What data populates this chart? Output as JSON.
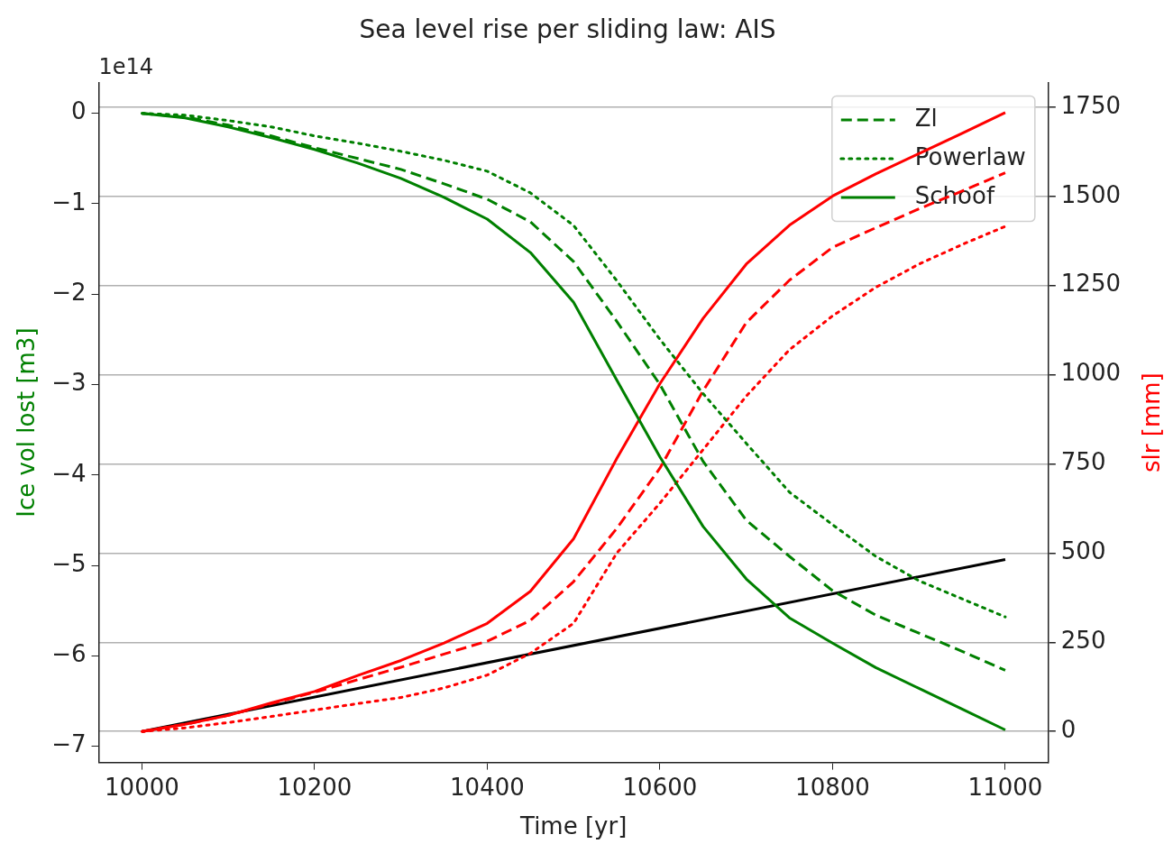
{
  "chart_data": {
    "type": "line",
    "title": "Sea level rise per sliding law: AIS",
    "xlabel": "Time [yr]",
    "ylabel": "Ice vol lost [m3]",
    "y2label": "slr [mm]",
    "annotations": [
      "1e14"
    ],
    "x": [
      10000,
      10050,
      10100,
      10150,
      10200,
      10250,
      10300,
      10350,
      10400,
      10450,
      10500,
      10550,
      10600,
      10650,
      10700,
      10750,
      10800,
      10850,
      10900,
      10950,
      11000
    ],
    "series": [
      {
        "name": "Zl",
        "color": "#008000",
        "line_style": "dashed",
        "values": [
          0,
          -0.04,
          -0.13,
          -0.25,
          -0.38,
          -0.5,
          -0.62,
          -0.78,
          -0.95,
          -1.2,
          -1.64,
          -2.3,
          -3.0,
          -3.85,
          -4.5,
          -4.9,
          -5.28,
          -5.55,
          -5.75,
          -5.95,
          -6.16
        ]
      },
      {
        "name": "Powerlaw",
        "color": "#008000",
        "line_style": "dotted",
        "values": [
          0,
          -0.02,
          -0.08,
          -0.15,
          -0.25,
          -0.33,
          -0.42,
          -0.52,
          -0.64,
          -0.88,
          -1.24,
          -1.85,
          -2.5,
          -3.1,
          -3.65,
          -4.19,
          -4.55,
          -4.9,
          -5.17,
          -5.37,
          -5.57
        ]
      },
      {
        "name": "Schoof",
        "color": "#008000",
        "line_style": "solid",
        "values": [
          0,
          -0.05,
          -0.15,
          -0.27,
          -0.4,
          -0.55,
          -0.72,
          -0.93,
          -1.17,
          -1.54,
          -2.09,
          -2.95,
          -3.8,
          -4.57,
          -5.15,
          -5.58,
          -5.86,
          -6.13,
          -6.36,
          -6.59,
          -6.82
        ]
      },
      {
        "color": "#ff0000",
        "axis": "y2",
        "line_style": "solid",
        "values": [
          0,
          20,
          45,
          80,
          112,
          157,
          199,
          248,
          303,
          393,
          540,
          765,
          975,
          1158,
          1310,
          1419,
          1501,
          1563,
          1620,
          1677,
          1735
        ]
      },
      {
        "color": "#ff0000",
        "axis": "y2",
        "line_style": "dashed",
        "values": [
          0,
          20,
          45,
          78,
          110,
          145,
          180,
          217,
          253,
          311,
          420,
          569,
          738,
          955,
          1146,
          1265,
          1357,
          1412,
          1465,
          1515,
          1566
        ]
      },
      {
        "color": "#ff0000",
        "axis": "y2",
        "line_style": "dotted",
        "values": [
          0,
          10,
          25,
          42,
          60,
          78,
          95,
          122,
          158,
          219,
          303,
          500,
          640,
          790,
          940,
          1070,
          1165,
          1245,
          1310,
          1365,
          1416
        ]
      },
      {
        "color": "#000000",
        "axis": "y2",
        "line_style": "solid",
        "x": [
          10000,
          11000
        ],
        "values": [
          0,
          482
        ]
      }
    ],
    "xlim": [
      9950,
      11050
    ],
    "xticks": [
      10000,
      10200,
      10400,
      10600,
      10800,
      11000
    ],
    "ylim": [
      -7.18,
      0.34
    ],
    "yticks": [
      {
        "value": -7,
        "label": "−7"
      },
      {
        "value": -6,
        "label": "−6"
      },
      {
        "value": -5,
        "label": "−5"
      },
      {
        "value": -4,
        "label": "−4"
      },
      {
        "value": -3,
        "label": "−3"
      },
      {
        "value": -2,
        "label": "−2"
      },
      {
        "value": -1,
        "label": "−1"
      },
      0
    ],
    "y2lim": [
      -87,
      1819
    ],
    "y2ticks": [
      0,
      250,
      500,
      750,
      1000,
      1250,
      1500,
      1750
    ],
    "grid": "y2",
    "legend": "top right",
    "marker": "none"
  }
}
